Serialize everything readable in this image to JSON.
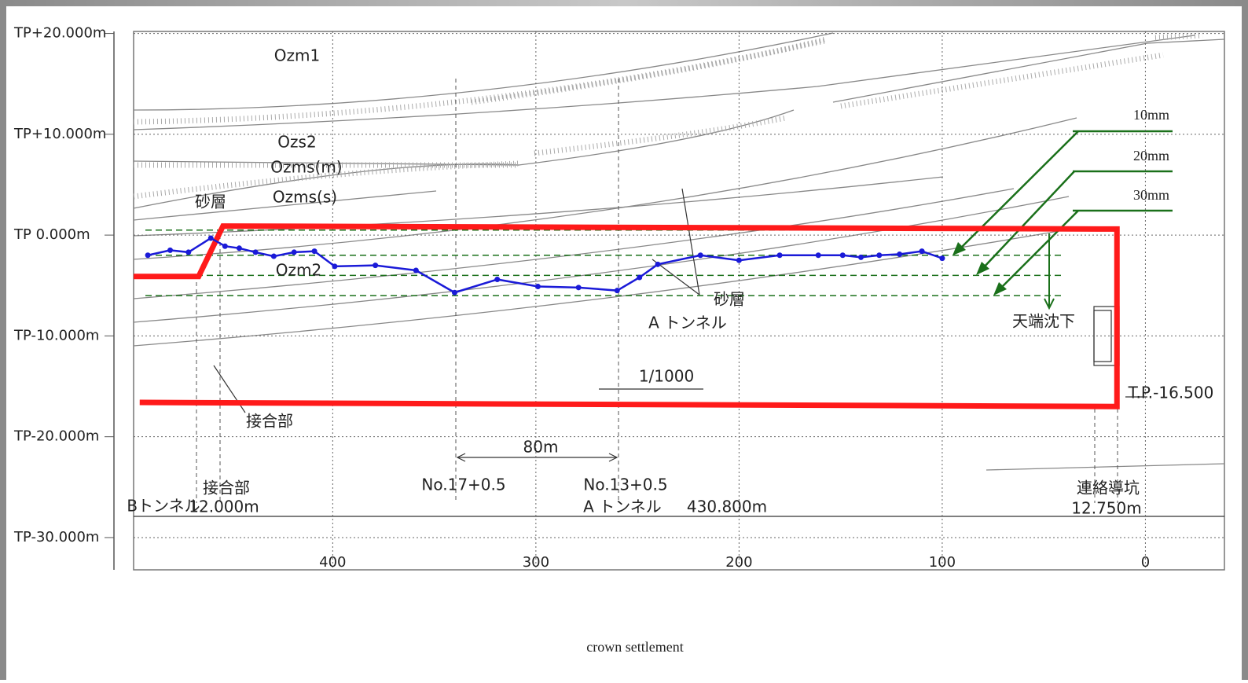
{
  "chart_data": {
    "type": "line",
    "title": "crown settlement",
    "x": [
      491,
      480,
      471,
      460,
      453,
      446,
      438,
      429,
      419,
      409,
      399,
      379,
      359,
      340,
      319,
      299,
      279,
      260,
      249,
      240,
      219,
      200,
      180,
      161,
      149,
      140,
      131,
      121,
      110,
      100
    ],
    "series": [
      {
        "color": "#1a1ad8",
        "values": [
          -2.0,
          -1.5,
          -1.7,
          -0.3,
          -1.1,
          -1.3,
          -1.7,
          -2.1,
          -1.7,
          -1.6,
          -3.1,
          -3.0,
          -3.5,
          -5.7,
          -4.4,
          -5.1,
          -5.2,
          -5.5,
          -4.2,
          -2.9,
          -2.0,
          -2.5,
          -2.0,
          -2.0,
          -2.0,
          -2.2,
          -2.0,
          -1.9,
          -1.6,
          -2.3
        ]
      }
    ],
    "xlim": [
      498,
      -38.9
    ],
    "ylim": [
      -33.2,
      20.2
    ],
    "xticks": [
      400,
      300,
      200,
      100,
      0
    ],
    "yticks": [
      {
        "value": 20,
        "label": "TP+20.000m"
      },
      {
        "value": 10,
        "label": "TP+10.000m"
      },
      {
        "value": 0,
        "label": "TP  0.000m"
      },
      {
        "value": -10,
        "label": "TP-10.000m"
      },
      {
        "value": -20,
        "label": "TP-20.000m"
      },
      {
        "value": -30,
        "label": "TP-30.000m"
      }
    ],
    "grid": true,
    "baseline": 0.5,
    "reference_lines": [
      {
        "label": "10mm",
        "value": -2.0
      },
      {
        "label": "20mm",
        "value": -4.0
      },
      {
        "label": "30mm",
        "value": -6.0
      }
    ],
    "reference_color": "#1a701a",
    "tunnel_outline": {
      "color": "#ff1a1a",
      "x": [
        498,
        466,
        454,
        14,
        14,
        495
      ],
      "y": [
        -4.1,
        -4.1,
        0.9,
        0.6,
        -17.0,
        -16.6
      ]
    },
    "annotations": [
      "Ozm1",
      "Ozs2",
      "Ozms(m)",
      "Ozms(s)",
      "砂層",
      "Ozm2",
      "砂層",
      "A トンネル",
      "天端沈下",
      "1/1000",
      "T.P.-16.500",
      "接合部",
      "80m",
      "No.17+0.5",
      "No.13+0.5",
      "接合部",
      "12.000m",
      "Bトンネル",
      "A トンネル",
      "430.800m",
      "連絡導坑",
      "12.750m"
    ]
  }
}
